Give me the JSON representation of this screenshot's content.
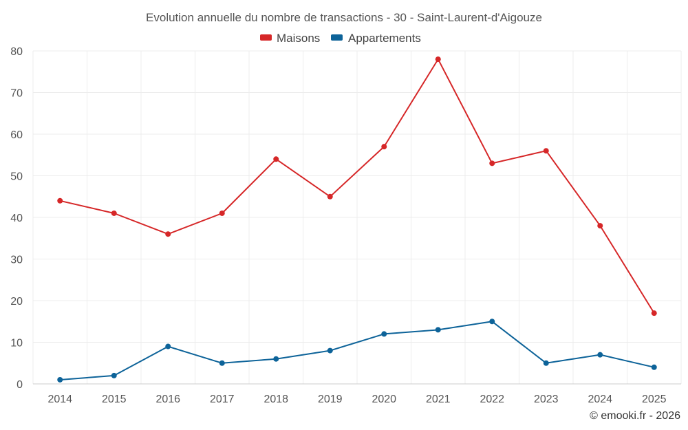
{
  "chart_data": {
    "type": "line",
    "title": "Evolution annuelle du nombre de transactions - 30 - Saint-Laurent-d'Aigouze",
    "categories": [
      "2014",
      "2015",
      "2016",
      "2017",
      "2018",
      "2019",
      "2020",
      "2021",
      "2022",
      "2023",
      "2024",
      "2025"
    ],
    "series": [
      {
        "name": "Maisons",
        "color": "#d62728",
        "values": [
          44,
          41,
          36,
          41,
          54,
          45,
          57,
          78,
          53,
          56,
          38,
          17
        ]
      },
      {
        "name": "Appartements",
        "color": "#0d6399",
        "values": [
          1,
          2,
          9,
          5,
          6,
          8,
          12,
          13,
          15,
          5,
          7,
          4
        ]
      }
    ],
    "ylim": [
      0,
      80
    ],
    "yticks": [
      0,
      10,
      20,
      30,
      40,
      50,
      60,
      70,
      80
    ],
    "xlabel": "",
    "ylabel": "",
    "grid": true,
    "legend_position": "top-center"
  },
  "credit": "© emooki.fr - 2026"
}
